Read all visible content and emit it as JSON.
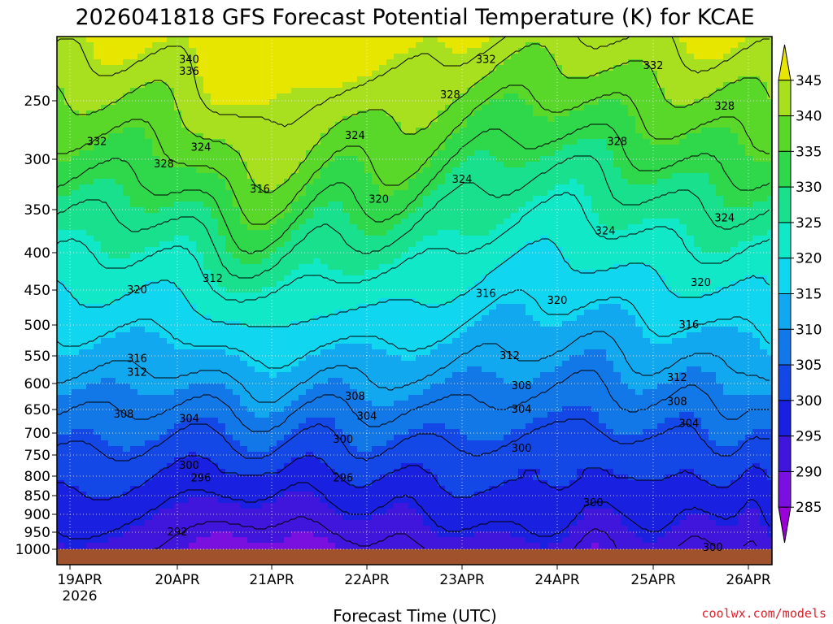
{
  "chart_data": {
    "type": "heatmap",
    "title": "2026041818 GFS Forecast Potential Temperature (K) for KCAE",
    "xlabel": "Forecast Time (UTC)",
    "ylabel": "",
    "source_label": "coolwx.com/models",
    "x_ticks": [
      "19APR",
      "20APR",
      "21APR",
      "22APR",
      "23APR",
      "24APR",
      "25APR",
      "26APR"
    ],
    "x_year_label": "2026",
    "y_ticks": [
      "250",
      "300",
      "350",
      "400",
      "450",
      "500",
      "550",
      "600",
      "650",
      "700",
      "750",
      "800",
      "850",
      "900",
      "950",
      "1000"
    ],
    "y_tick_values": [
      250,
      300,
      350,
      400,
      450,
      500,
      550,
      600,
      650,
      700,
      750,
      800,
      850,
      900,
      950,
      1000
    ],
    "ylim": [
      1000,
      200
    ],
    "colorbar": {
      "labels": [
        "345",
        "340",
        "335",
        "330",
        "325",
        "320",
        "315",
        "310",
        "305",
        "300",
        "295",
        "290",
        "285"
      ],
      "colors": [
        "#e6e600",
        "#a8e020",
        "#5ad82a",
        "#2ed84a",
        "#18e08c",
        "#10e8c8",
        "#10d6f0",
        "#12a8f0",
        "#1278e8",
        "#1448e6",
        "#1a20e0",
        "#4016dc",
        "#7a10e0",
        "#9a00d8"
      ]
    },
    "isentropes_labeled": [
      {
        "label": "340",
        "time": "20APR 03Z",
        "pres": 215
      },
      {
        "label": "336",
        "time": "20APR 03Z",
        "pres": 225
      },
      {
        "label": "332",
        "time": "19APR 06Z",
        "pres": 285
      },
      {
        "label": "328",
        "time": "19APR 21Z",
        "pres": 305
      },
      {
        "label": "324",
        "time": "20APR 06Z",
        "pres": 290
      },
      {
        "label": "316",
        "time": "20APR 21Z",
        "pres": 330
      },
      {
        "label": "320",
        "time": "19APR 15Z",
        "pres": 450
      },
      {
        "label": "312",
        "time": "20APR 09Z",
        "pres": 435
      },
      {
        "label": "316",
        "time": "19APR 15Z",
        "pres": 555
      },
      {
        "label": "312",
        "time": "19APR 15Z",
        "pres": 580
      },
      {
        "label": "308",
        "time": "19APR 12Z",
        "pres": 660
      },
      {
        "label": "304",
        "time": "20APR 03Z",
        "pres": 670
      },
      {
        "label": "300",
        "time": "20APR 03Z",
        "pres": 775
      },
      {
        "label": "296",
        "time": "20APR 06Z",
        "pres": 805
      },
      {
        "label": "292",
        "time": "20APR 00Z",
        "pres": 950
      },
      {
        "label": "332",
        "time": "23APR 06Z",
        "pres": 215
      },
      {
        "label": "328",
        "time": "22APR 21Z",
        "pres": 245
      },
      {
        "label": "324",
        "time": "21APR 21Z",
        "pres": 280
      },
      {
        "label": "320",
        "time": "22APR 03Z",
        "pres": 340
      },
      {
        "label": "308",
        "time": "21APR 21Z",
        "pres": 625
      },
      {
        "label": "304",
        "time": "22APR 00Z",
        "pres": 665
      },
      {
        "label": "300",
        "time": "21APR 18Z",
        "pres": 715
      },
      {
        "label": "296",
        "time": "21APR 18Z",
        "pres": 805
      },
      {
        "label": "324",
        "time": "23APR 00Z",
        "pres": 320
      },
      {
        "label": "316",
        "time": "23APR 06Z",
        "pres": 455
      },
      {
        "label": "312",
        "time": "23APR 12Z",
        "pres": 550
      },
      {
        "label": "308",
        "time": "23APR 15Z",
        "pres": 605
      },
      {
        "label": "304",
        "time": "23APR 15Z",
        "pres": 650
      },
      {
        "label": "300",
        "time": "23APR 15Z",
        "pres": 735
      },
      {
        "label": "320",
        "time": "24APR 00Z",
        "pres": 465
      },
      {
        "label": "324",
        "time": "24APR 12Z",
        "pres": 375
      },
      {
        "label": "328",
        "time": "24APR 15Z",
        "pres": 285
      },
      {
        "label": "300",
        "time": "24APR 09Z",
        "pres": 870
      },
      {
        "label": "332",
        "time": "25APR 00Z",
        "pres": 220
      },
      {
        "label": "328",
        "time": "25APR 18Z",
        "pres": 255
      },
      {
        "label": "324",
        "time": "25APR 18Z",
        "pres": 360
      },
      {
        "label": "320",
        "time": "25APR 12Z",
        "pres": 440
      },
      {
        "label": "316",
        "time": "25APR 09Z",
        "pres": 500
      },
      {
        "label": "312",
        "time": "25APR 06Z",
        "pres": 590
      },
      {
        "label": "308",
        "time": "25APR 06Z",
        "pres": 635
      },
      {
        "label": "304",
        "time": "25APR 09Z",
        "pres": 680
      },
      {
        "label": "300",
        "time": "25APR 15Z",
        "pres": 995
      }
    ]
  }
}
